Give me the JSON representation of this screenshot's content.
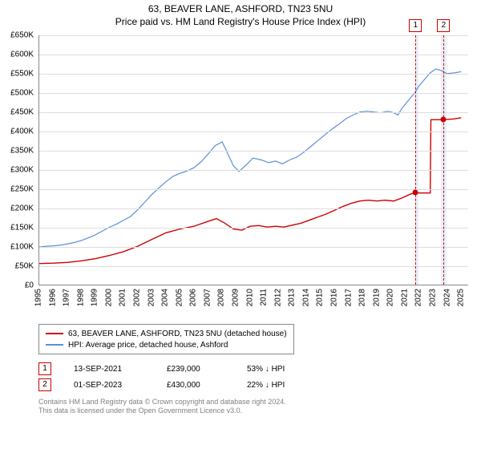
{
  "title": "63, BEAVER LANE, ASHFORD, TN23 5NU",
  "subtitle": "Price paid vs. HM Land Registry's House Price Index (HPI)",
  "chart": {
    "type": "line",
    "xlim": [
      1995,
      2025.5
    ],
    "ylim": [
      0,
      650000
    ],
    "ytick_step": 50000,
    "yticks": [
      "£0",
      "£50K",
      "£100K",
      "£150K",
      "£200K",
      "£250K",
      "£300K",
      "£350K",
      "£400K",
      "£450K",
      "£500K",
      "£550K",
      "£600K",
      "£650K"
    ],
    "xticks_years": [
      1995,
      1996,
      1997,
      1998,
      1999,
      2000,
      2001,
      2002,
      2003,
      2004,
      2005,
      2006,
      2007,
      2008,
      2009,
      2010,
      2011,
      2012,
      2013,
      2014,
      2015,
      2016,
      2017,
      2018,
      2019,
      2020,
      2021,
      2022,
      2023,
      2024,
      2025
    ],
    "grid_color": "#dddddd",
    "axis_color": "#888888",
    "background_color": "#ffffff",
    "label_fontsize": 10,
    "series": [
      {
        "name": "hpi",
        "color": "#5b8fd6",
        "width": 1.2,
        "points": [
          [
            1995.0,
            98000
          ],
          [
            1995.5,
            100000
          ],
          [
            1996.0,
            101000
          ],
          [
            1996.5,
            103000
          ],
          [
            1997.0,
            106000
          ],
          [
            1997.5,
            110000
          ],
          [
            1998.0,
            115000
          ],
          [
            1998.5,
            122000
          ],
          [
            1999.0,
            130000
          ],
          [
            1999.5,
            140000
          ],
          [
            2000.0,
            150000
          ],
          [
            2000.5,
            158000
          ],
          [
            2001.0,
            168000
          ],
          [
            2001.5,
            178000
          ],
          [
            2002.0,
            195000
          ],
          [
            2002.5,
            215000
          ],
          [
            2003.0,
            235000
          ],
          [
            2003.5,
            252000
          ],
          [
            2004.0,
            268000
          ],
          [
            2004.5,
            282000
          ],
          [
            2005.0,
            290000
          ],
          [
            2005.5,
            296000
          ],
          [
            2006.0,
            305000
          ],
          [
            2006.5,
            320000
          ],
          [
            2007.0,
            340000
          ],
          [
            2007.5,
            362000
          ],
          [
            2008.0,
            372000
          ],
          [
            2008.3,
            350000
          ],
          [
            2008.8,
            310000
          ],
          [
            2009.2,
            295000
          ],
          [
            2009.8,
            315000
          ],
          [
            2010.2,
            330000
          ],
          [
            2010.8,
            325000
          ],
          [
            2011.3,
            318000
          ],
          [
            2011.8,
            322000
          ],
          [
            2012.3,
            315000
          ],
          [
            2012.8,
            325000
          ],
          [
            2013.3,
            332000
          ],
          [
            2013.8,
            345000
          ],
          [
            2014.3,
            360000
          ],
          [
            2014.8,
            375000
          ],
          [
            2015.3,
            390000
          ],
          [
            2015.8,
            405000
          ],
          [
            2016.3,
            418000
          ],
          [
            2016.8,
            432000
          ],
          [
            2017.3,
            442000
          ],
          [
            2017.8,
            450000
          ],
          [
            2018.3,
            452000
          ],
          [
            2018.8,
            450000
          ],
          [
            2019.3,
            448000
          ],
          [
            2019.8,
            452000
          ],
          [
            2020.2,
            448000
          ],
          [
            2020.5,
            442000
          ],
          [
            2020.8,
            460000
          ],
          [
            2021.2,
            478000
          ],
          [
            2021.7,
            500000
          ],
          [
            2022.0,
            518000
          ],
          [
            2022.4,
            535000
          ],
          [
            2022.8,
            552000
          ],
          [
            2023.2,
            562000
          ],
          [
            2023.6,
            558000
          ],
          [
            2024.0,
            550000
          ],
          [
            2024.5,
            552000
          ],
          [
            2025.0,
            555000
          ]
        ]
      },
      {
        "name": "price_paid",
        "color": "#cc0000",
        "width": 1.4,
        "points": [
          [
            1995.0,
            55000
          ],
          [
            1996.0,
            56000
          ],
          [
            1997.0,
            58000
          ],
          [
            1998.0,
            62000
          ],
          [
            1999.0,
            68000
          ],
          [
            2000.0,
            76000
          ],
          [
            2001.0,
            86000
          ],
          [
            2002.0,
            100000
          ],
          [
            2003.0,
            118000
          ],
          [
            2004.0,
            135000
          ],
          [
            2005.0,
            145000
          ],
          [
            2006.0,
            152000
          ],
          [
            2007.0,
            165000
          ],
          [
            2007.6,
            172000
          ],
          [
            2008.2,
            160000
          ],
          [
            2008.8,
            145000
          ],
          [
            2009.4,
            142000
          ],
          [
            2010.0,
            152000
          ],
          [
            2010.6,
            154000
          ],
          [
            2011.2,
            150000
          ],
          [
            2011.8,
            152000
          ],
          [
            2012.4,
            150000
          ],
          [
            2013.0,
            155000
          ],
          [
            2013.6,
            160000
          ],
          [
            2014.2,
            168000
          ],
          [
            2014.8,
            176000
          ],
          [
            2015.4,
            184000
          ],
          [
            2016.0,
            194000
          ],
          [
            2016.6,
            204000
          ],
          [
            2017.2,
            212000
          ],
          [
            2017.8,
            218000
          ],
          [
            2018.4,
            220000
          ],
          [
            2019.0,
            218000
          ],
          [
            2019.6,
            220000
          ],
          [
            2020.2,
            218000
          ],
          [
            2020.8,
            226000
          ],
          [
            2021.4,
            236000
          ],
          [
            2021.7,
            239000
          ],
          [
            2021.71,
            239000
          ],
          [
            2022.6,
            239000
          ],
          [
            2022.8,
            239000
          ],
          [
            2022.85,
            430000
          ],
          [
            2023.7,
            430000
          ],
          [
            2024.5,
            432000
          ],
          [
            2025.0,
            435000
          ]
        ]
      }
    ],
    "markers": [
      {
        "id": "1",
        "x": 2021.7,
        "y": 239000,
        "band_from": 2021.7,
        "band_to": 2021.9
      },
      {
        "id": "2",
        "x": 2023.7,
        "y": 430000,
        "band_from": 2023.5,
        "band_to": 2023.9
      }
    ]
  },
  "legend": {
    "items": [
      {
        "color": "#cc0000",
        "label": "63, BEAVER LANE, ASHFORD, TN23 5NU (detached house)"
      },
      {
        "color": "#5b8fd6",
        "label": "HPI: Average price, detached house, Ashford"
      }
    ]
  },
  "transactions": [
    {
      "id": "1",
      "date": "13-SEP-2021",
      "price": "£239,000",
      "pct": "53%",
      "dir": "↓",
      "cmp": "HPI"
    },
    {
      "id": "2",
      "date": "01-SEP-2023",
      "price": "£430,000",
      "pct": "22%",
      "dir": "↓",
      "cmp": "HPI"
    }
  ],
  "attribution": {
    "line1": "Contains HM Land Registry data © Crown copyright and database right 2024.",
    "line2": "This data is licensed under the Open Government Licence v3.0."
  }
}
